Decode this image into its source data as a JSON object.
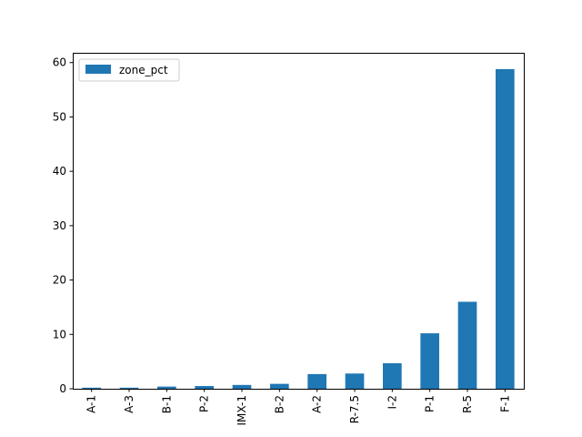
{
  "chart_data": {
    "type": "bar",
    "categories": [
      "A-1",
      "A-3",
      "B-1",
      "P-2",
      "IMX-1",
      "B-2",
      "A-2",
      "R-7.5",
      "I-2",
      "P-1",
      "R-5",
      "F-1"
    ],
    "series": [
      {
        "name": "zone_pct",
        "values": [
          0.2,
          0.2,
          0.4,
          0.5,
          0.7,
          0.9,
          2.7,
          2.8,
          4.7,
          10.2,
          16.0,
          58.8
        ],
        "color": "#1f77b4"
      }
    ],
    "title": "",
    "xlabel": "",
    "ylabel": "",
    "ylim": [
      0,
      61.8
    ],
    "yticks": [
      0,
      10,
      20,
      30,
      40,
      50,
      60
    ],
    "grid": false,
    "legend_position": "top-left"
  }
}
